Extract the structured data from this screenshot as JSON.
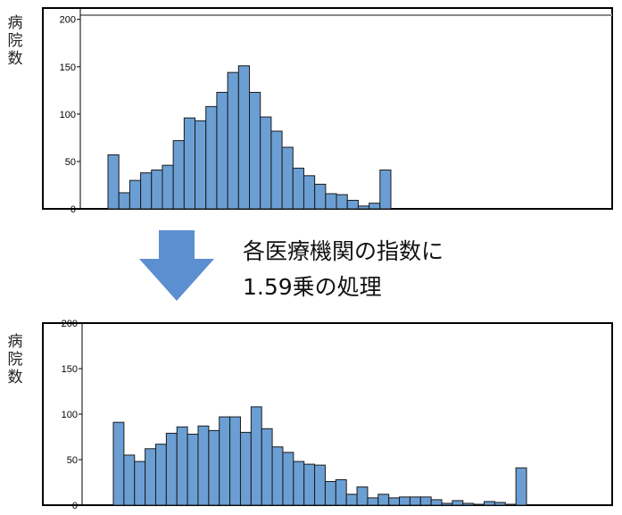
{
  "charts_ylabel": "病\n院\n数",
  "caption": {
    "line1": "各医療機関の指数に",
    "line2": "1.59乗の処理"
  },
  "colors": {
    "bar_fill": "#6b9fd4",
    "bar_stroke": "#1a1a1a",
    "arrow": "#5b8fd0",
    "plot_border": "#000000"
  },
  "icons": {
    "arrow": "down-arrow-icon"
  },
  "chart_data": [
    {
      "type": "bar",
      "ylabel": "病院数",
      "ylim": [
        0,
        212
      ],
      "yticks": [
        0,
        50,
        100,
        150,
        200
      ],
      "top_tick_label_clipped": false,
      "values": [
        57,
        17,
        30,
        38,
        41,
        46,
        72,
        96,
        93,
        108,
        123,
        144,
        151,
        123,
        97,
        82,
        65,
        43,
        35,
        26,
        16,
        15,
        9,
        3,
        6,
        41
      ],
      "grid": false
    },
    {
      "type": "bar",
      "ylabel": "病院数",
      "ylim": [
        0,
        200
      ],
      "yticks": [
        0,
        50,
        100,
        150,
        200
      ],
      "top_tick_label_clipped": true,
      "values": [
        91,
        55,
        48,
        62,
        67,
        79,
        86,
        78,
        87,
        82,
        97,
        97,
        80,
        108,
        84,
        64,
        58,
        48,
        45,
        44,
        26,
        28,
        12,
        20,
        8,
        12,
        8,
        9,
        9,
        9,
        6,
        2,
        5,
        2,
        1,
        4,
        3,
        1,
        41
      ],
      "grid": false
    }
  ]
}
